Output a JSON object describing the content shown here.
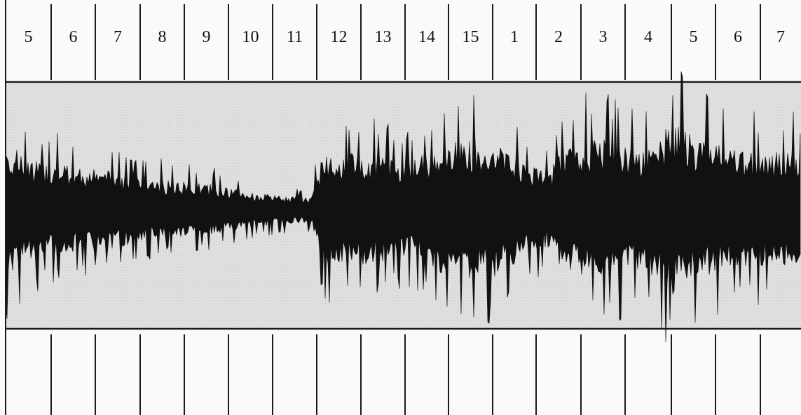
{
  "header": {
    "beat_numbers": [
      "5",
      "6",
      "7",
      "8",
      "9",
      "10",
      "11",
      "12",
      "13",
      "14",
      "15",
      "1",
      "2",
      "3",
      "4",
      "5",
      "6",
      "7"
    ]
  },
  "colors": {
    "paper": "#fafafa",
    "band_background": "#d9d9d9",
    "waveform": "#111111",
    "rule_lines": "#1a1a1a"
  }
}
